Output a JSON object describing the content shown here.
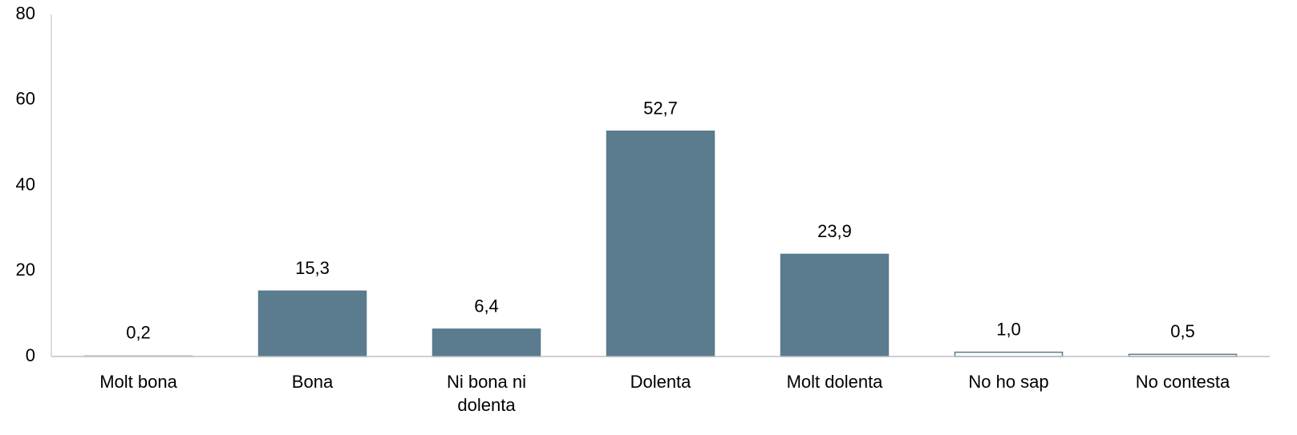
{
  "chart_data": {
    "type": "bar",
    "categories": [
      "Molt bona",
      "Bona",
      "Ni bona ni dolenta",
      "Dolenta",
      "Molt dolenta",
      "No ho sap",
      "No contesta"
    ],
    "values": [
      0.2,
      15.3,
      6.4,
      52.7,
      23.9,
      1.0,
      0.5
    ],
    "value_labels": [
      "0,2",
      "15,3",
      "6,4",
      "52,7",
      "23,9",
      "1,0",
      "0,5"
    ],
    "colors": [
      "#ffffff",
      "#5b7b8e",
      "#5b7b8e",
      "#5b7b8e",
      "#5b7b8e",
      "#ffffff",
      "#ffffff"
    ],
    "edge_colors": [
      "#d0d0d0",
      "#5b7b8e",
      "#5b7b8e",
      "#5b7b8e",
      "#5b7b8e",
      "#5b7b8e",
      "#5b7b8e"
    ],
    "ylim": [
      0,
      80
    ],
    "yticks": [
      0,
      20,
      40,
      60,
      80
    ],
    "grid": false
  }
}
